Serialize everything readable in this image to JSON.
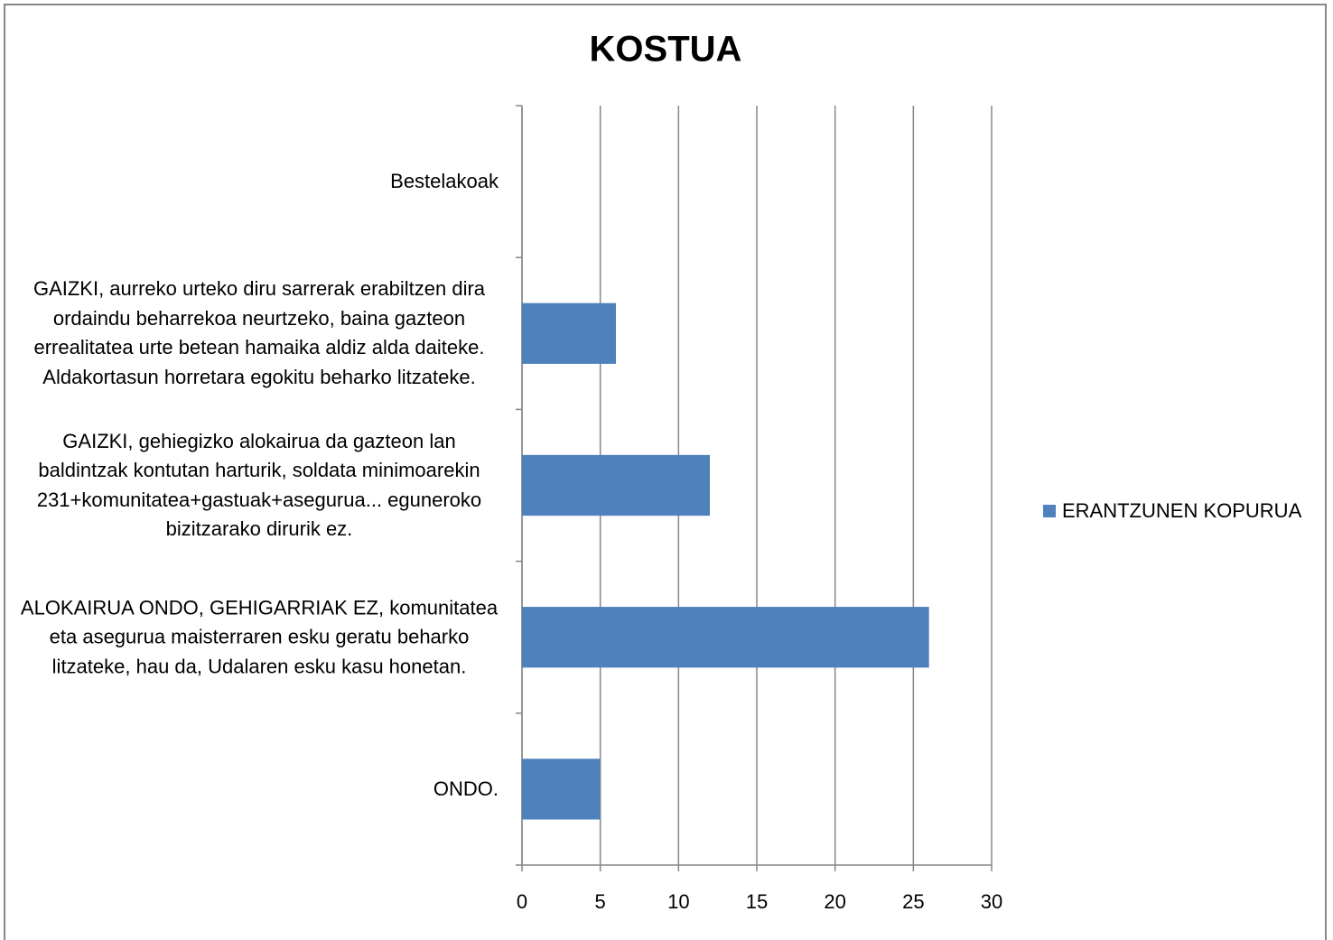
{
  "chart_data": {
    "type": "bar",
    "orientation": "horizontal",
    "title": "KOSTUA",
    "categories": [
      "Bestelakoak",
      "GAIZKI,  aurreko urteko diru sarrerak erabiltzen dira ordaindu beharrekoa neurtzeko, baina gazteon errealitatea urte betean hamaika aldiz alda daiteke. Aldakortasun horretara egokitu beharko litzateke.",
      "GAIZKI, gehiegizko alokairua da gazteon lan baldintzak kontutan harturik, soldata minimoarekin 231+komunitatea+gastuak+asegurua... eguneroko bizitzarako dirurik ez.",
      "ALOKAIRUA ONDO, GEHIGARRIAK EZ, komunitatea eta asegurua  maisterraren esku geratu beharko litzateke, hau da, Udalaren esku kasu honetan.",
      "ONDO."
    ],
    "series": [
      {
        "name": "ERANTZUNEN KOPURUA",
        "color": "#4f81bd",
        "values": [
          0,
          6,
          12,
          26,
          5
        ]
      }
    ],
    "xlim": [
      0,
      30
    ],
    "xticks": [
      0,
      5,
      10,
      15,
      20,
      25,
      30
    ],
    "grid": true,
    "legend": "right"
  }
}
